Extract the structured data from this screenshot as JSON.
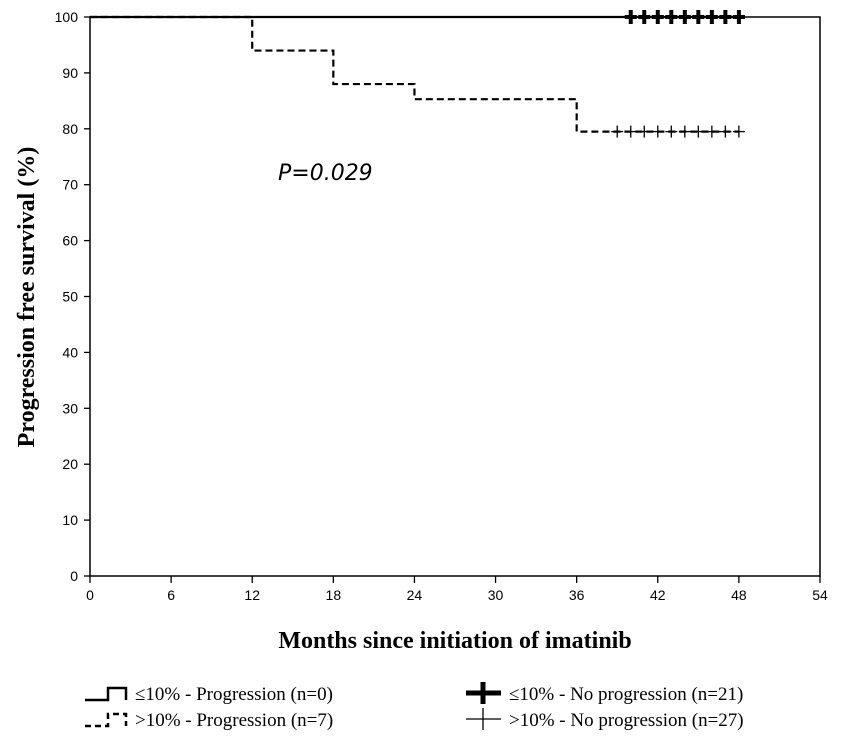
{
  "chart_data": {
    "type": "line",
    "subtype": "kaplan-meier",
    "xlabel": "Months since initiation of imatinib",
    "ylabel": "Progression free survival (%)",
    "xlim": [
      0,
      54
    ],
    "ylim": [
      0,
      100
    ],
    "xticks": [
      "0",
      "6",
      "12",
      "18",
      "24",
      "30",
      "36",
      "42",
      "48",
      "54"
    ],
    "yticks": [
      "0",
      "10",
      "20",
      "30",
      "40",
      "50",
      "60",
      "70",
      "80",
      "90",
      "100"
    ],
    "grid": false,
    "annotation": "P=0.029",
    "series": [
      {
        "name": "≤10% - Progression (n=0)",
        "line_style": "solid",
        "color": "#000000",
        "x": [
          0,
          48
        ],
        "y": [
          100,
          100
        ]
      },
      {
        "name": ">10% - Progression (n=7)",
        "line_style": "dashed",
        "color": "#000000",
        "x": [
          0,
          12,
          18,
          24,
          36,
          48
        ],
        "y": [
          100,
          94,
          88,
          85.3,
          79.5,
          79.5
        ]
      }
    ],
    "censored": [
      {
        "name": "≤10% - No progression (n=21)",
        "marker": "thick-plus",
        "x": [
          40,
          41,
          42,
          43,
          44,
          45,
          46,
          47,
          48
        ],
        "y": [
          100,
          100,
          100,
          100,
          100,
          100,
          100,
          100,
          100
        ]
      },
      {
        "name": ">10% - No progression (n=27)",
        "marker": "thin-plus",
        "x": [
          39,
          40,
          41,
          42,
          43,
          44,
          45,
          46,
          47,
          48
        ],
        "y": [
          79.5,
          79.5,
          79.5,
          79.5,
          79.5,
          79.5,
          79.5,
          79.5,
          79.5,
          79.5
        ]
      }
    ],
    "legend": {
      "placement": "bottom",
      "entries": [
        "≤10% - Progression (n=0)",
        ">10% - Progression (n=7)",
        "≤10% - No progression (n=21)",
        ">10% - No progression (n=27)"
      ]
    }
  }
}
